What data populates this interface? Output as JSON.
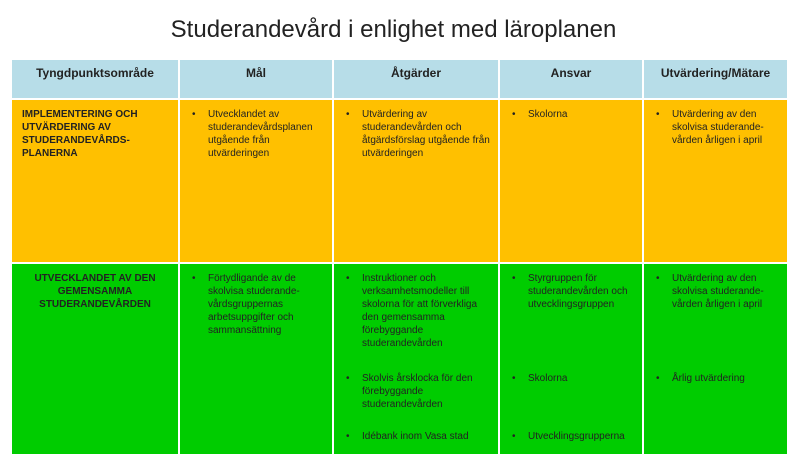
{
  "title": "Studerandevård i enlighet med läroplanen",
  "table": {
    "header": [
      "Tyngdpunktsområde",
      "Mål",
      "Åtgärder",
      "Ansvar",
      "Utvärdering/Mätare"
    ],
    "rows": [
      {
        "area": "IMPLEMENTERING OCH UTVÄRDERING AV STUDERANDEVÅRDS-PLANERNA",
        "cells": [
          [
            "Utvecklandet av studerandevårdsplanen utgående från utvärderingen"
          ],
          [
            "Utvärdering av studerandevården och åtgärdsförslag utgående från utvärderingen"
          ],
          [
            "Skolorna"
          ],
          [
            "Utvärdering av den skolvisa studerande-vården årligen i april"
          ]
        ]
      },
      {
        "area": "UTVECKLANDET AV DEN GEMENSAMMA STUDERANDEVÅRDEN",
        "cells": [
          [
            "Förtydligande av de skolvisa studerande-vårdsgruppernas arbetsuppgifter och sammansättning"
          ],
          [
            "Instruktioner och verksamhetsmodeller till skolorna för att förverkliga den gemensamma förebyggande studerandevården",
            "Skolvis årsklocka för den förebyggande studerandevården",
            "Idébank inom Vasa stad"
          ],
          [
            "Styrgruppen för studerandevården och utvecklingsgruppen",
            "Skolorna",
            "Utvecklingsgrupperna"
          ],
          [
            "Utvärdering av den skolvisa studerande-vården årligen i april",
            "Årlig utvärdering"
          ]
        ]
      }
    ]
  }
}
